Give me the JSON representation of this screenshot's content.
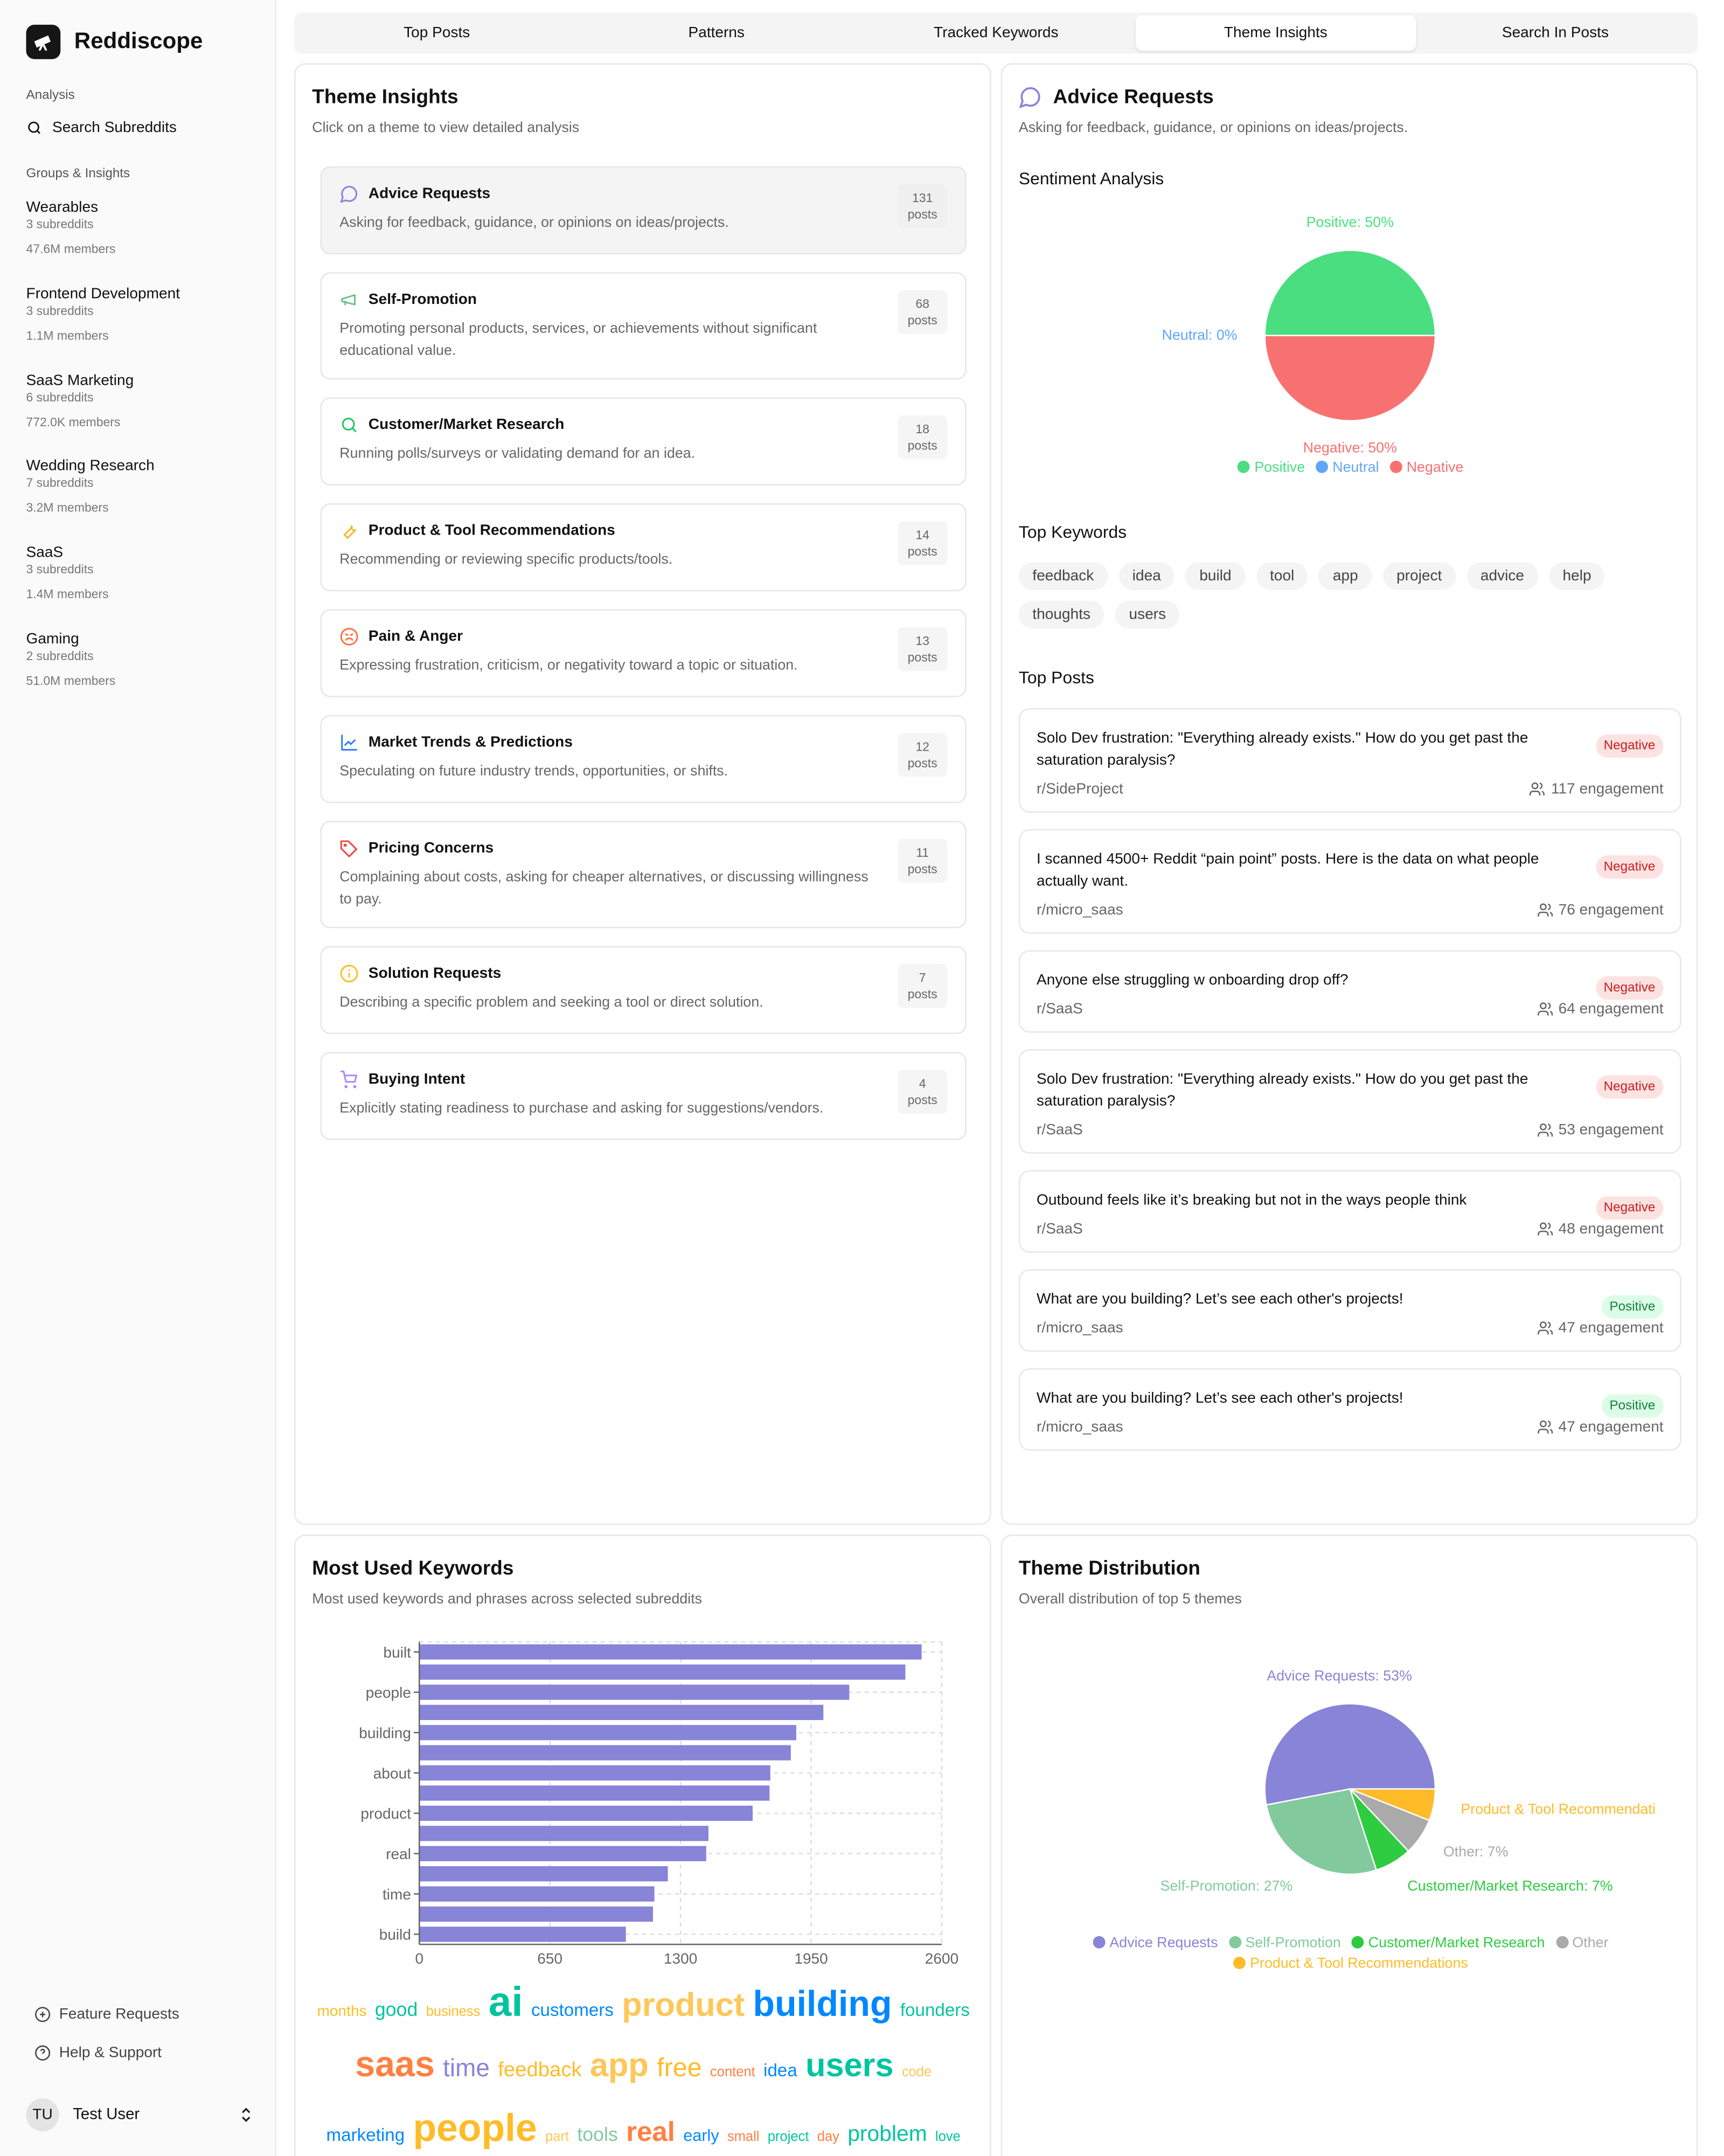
{
  "app": {
    "name": "Reddiscope",
    "logo_icon": "telescope-icon"
  },
  "sidebar": {
    "analysis_label": "Analysis",
    "search_label": "Search Subreddits",
    "groups_label": "Groups & Insights",
    "groups": [
      {
        "name": "Wearables",
        "subs": "3 subreddits",
        "members": "47.6M members"
      },
      {
        "name": "Frontend Development",
        "subs": "3 subreddits",
        "members": "1.1M members"
      },
      {
        "name": "SaaS Marketing",
        "subs": "6 subreddits",
        "members": "772.0K members"
      },
      {
        "name": "Wedding Research",
        "subs": "7 subreddits",
        "members": "3.2M members"
      },
      {
        "name": "SaaS",
        "subs": "3 subreddits",
        "members": "1.4M members"
      },
      {
        "name": "Gaming",
        "subs": "2 subreddits",
        "members": "51.0M members"
      }
    ],
    "feature_requests": "Feature Requests",
    "help": "Help & Support",
    "user": {
      "initials": "TU",
      "name": "Test User"
    }
  },
  "tabs": [
    {
      "label": "Top Posts"
    },
    {
      "label": "Patterns"
    },
    {
      "label": "Tracked Keywords"
    },
    {
      "label": "Theme Insights",
      "active": true
    },
    {
      "label": "Search In Posts"
    }
  ],
  "themes_panel": {
    "title": "Theme Insights",
    "subtitle": "Click on a theme to view detailed analysis",
    "themes": [
      {
        "name": "Advice Requests",
        "desc": "Asking for feedback, guidance, or opinions on ideas/projects.",
        "count": "131",
        "unit": "posts",
        "icon": "message-circle-icon",
        "color": "#8b7fd9",
        "selected": true
      },
      {
        "name": "Self-Promotion",
        "desc": "Promoting personal products, services, or achievements without significant educational value.",
        "count": "68",
        "unit": "posts",
        "icon": "megaphone-icon",
        "color": "#6fbf8b"
      },
      {
        "name": "Customer/Market Research",
        "desc": "Running polls/surveys or validating demand for an idea.",
        "count": "18",
        "unit": "posts",
        "icon": "search-icon",
        "color": "#22c55e"
      },
      {
        "name": "Product & Tool Recommendations",
        "desc": "Recommending or reviewing specific products/tools.",
        "count": "14",
        "unit": "posts",
        "icon": "wrench-icon",
        "color": "#f5b82e"
      },
      {
        "name": "Pain & Anger",
        "desc": "Expressing frustration, criticism, or negativity toward a topic or situation.",
        "count": "13",
        "unit": "posts",
        "icon": "angry-face-icon",
        "color": "#f97347"
      },
      {
        "name": "Market Trends & Predictions",
        "desc": "Speculating on future industry trends, opportunities, or shifts.",
        "count": "12",
        "unit": "posts",
        "icon": "line-chart-icon",
        "color": "#2f7cf6"
      },
      {
        "name": "Pricing Concerns",
        "desc": "Complaining about costs, asking for cheaper alternatives, or discussing willingness to pay.",
        "count": "11",
        "unit": "posts",
        "icon": "tag-icon",
        "color": "#ef4444"
      },
      {
        "name": "Solution Requests",
        "desc": "Describing a specific problem and seeking a tool or direct solution.",
        "count": "7",
        "unit": "posts",
        "icon": "info-circle-icon",
        "color": "#fbbf24"
      },
      {
        "name": "Buying Intent",
        "desc": "Explicitly stating readiness to purchase and asking for suggestions/vendors.",
        "count": "4",
        "unit": "posts",
        "icon": "shopping-cart-icon",
        "color": "#a78bfa"
      }
    ]
  },
  "detail": {
    "title": "Advice Requests",
    "desc": "Asking for feedback, guidance, or opinions on ideas/projects.",
    "sentiment_title": "Sentiment Analysis",
    "keywords_title": "Top Keywords",
    "keywords": [
      "feedback",
      "idea",
      "build",
      "tool",
      "app",
      "project",
      "advice",
      "help",
      "thoughts",
      "users"
    ],
    "posts_title": "Top Posts",
    "posts": [
      {
        "title": "Solo Dev frustration: \"Everything already exists.\" How do you get past the saturation paralysis?",
        "sub": "r/SideProject",
        "engagement": "117 engagement",
        "sentiment": "Negative"
      },
      {
        "title": "I scanned 4500+ Reddit “pain point” posts. Here is the data on what people actually want.",
        "sub": "r/micro_saas",
        "engagement": "76 engagement",
        "sentiment": "Negative"
      },
      {
        "title": "Anyone else struggling w onboarding drop off?",
        "sub": "r/SaaS",
        "engagement": "64 engagement",
        "sentiment": "Negative"
      },
      {
        "title": "Solo Dev frustration: \"Everything already exists.\" How do you get past the saturation paralysis?",
        "sub": "r/SaaS",
        "engagement": "53 engagement",
        "sentiment": "Negative"
      },
      {
        "title": "Outbound feels like it’s breaking but not in the ways people think",
        "sub": "r/SaaS",
        "engagement": "48 engagement",
        "sentiment": "Negative"
      },
      {
        "title": "What are you building? Let’s see each other's projects!",
        "sub": "r/micro_saas",
        "engagement": "47 engagement",
        "sentiment": "Positive"
      },
      {
        "title": "What are you building? Let’s see each other's projects!",
        "sub": "r/micro_saas",
        "engagement": "47 engagement",
        "sentiment": "Positive"
      }
    ],
    "badge_colors": {
      "Negative": {
        "bg": "#fde2e2",
        "fg": "#c81e1e"
      },
      "Positive": {
        "bg": "#dcfce7",
        "fg": "#15803d"
      }
    }
  },
  "keywords_panel": {
    "title": "Most Used Keywords",
    "subtitle": "Most used keywords and phrases across selected subreddits",
    "cloud": [
      [
        {
          "w": "months",
          "s": 11,
          "c": "#FBBF24"
        },
        {
          "w": "good",
          "s": 14,
          "c": "#00C49F"
        },
        {
          "w": "business",
          "s": 10,
          "c": "#FFBB28"
        },
        {
          "w": "ai",
          "s": 30,
          "c": "#00C49F"
        },
        {
          "w": "customers",
          "s": 13,
          "c": "#0088FE"
        },
        {
          "w": "product",
          "s": 24,
          "c": "#FFC658"
        },
        {
          "w": "building",
          "s": 26,
          "c": "#0088FE"
        },
        {
          "w": "founders",
          "s": 13,
          "c": "#00C49F"
        }
      ],
      [
        {
          "w": "saas",
          "s": 26,
          "c": "#FF8042"
        },
        {
          "w": "time",
          "s": 18,
          "c": "#8884D8"
        },
        {
          "w": "feedback",
          "s": 15,
          "c": "#FFBB28"
        },
        {
          "w": "app",
          "s": 24,
          "c": "#FFC658"
        },
        {
          "w": "free",
          "s": 19,
          "c": "#FFBB28"
        },
        {
          "w": "content",
          "s": 10,
          "c": "#FF8042"
        },
        {
          "w": "idea",
          "s": 13,
          "c": "#0088FE"
        },
        {
          "w": "users",
          "s": 24,
          "c": "#00C49F"
        },
        {
          "w": "code",
          "s": 10,
          "c": "#FFC658"
        }
      ],
      [
        {
          "w": "marketing",
          "s": 13,
          "c": "#0088FE"
        },
        {
          "w": "people",
          "s": 28,
          "c": "#FFBB28"
        },
        {
          "w": "part",
          "s": 10,
          "c": "#FFC658"
        },
        {
          "w": "tools",
          "s": 14,
          "c": "#82CA9D"
        },
        {
          "w": "real",
          "s": 20,
          "c": "#FF8042"
        },
        {
          "w": "early",
          "s": 12,
          "c": "#0088FE"
        },
        {
          "w": "small",
          "s": 10,
          "c": "#FF8042"
        },
        {
          "w": "project",
          "s": 10,
          "c": "#00C49F"
        },
        {
          "w": "day",
          "s": 10,
          "c": "#FF8042"
        },
        {
          "w": "problem",
          "s": 16,
          "c": "#00C49F"
        },
        {
          "w": "love",
          "s": 10,
          "c": "#00C49F"
        }
      ]
    ]
  },
  "distribution_panel": {
    "title": "Theme Distribution",
    "subtitle": "Overall distribution of top 5 themes"
  },
  "chart_data": [
    {
      "type": "pie",
      "series": "sentiment",
      "slices": [
        {
          "name": "Positive",
          "value": 50,
          "label": "Positive: 50%",
          "color": "#4ADE80"
        },
        {
          "name": "Neutral",
          "value": 0,
          "label": "Neutral: 0%",
          "color": "#60A5FA"
        },
        {
          "name": "Negative",
          "value": 50,
          "label": "Negative: 50%",
          "color": "#F87171"
        }
      ],
      "legend": "bottom"
    },
    {
      "type": "bar",
      "orientation": "horizontal",
      "categories": [
        "built",
        "",
        "people",
        "",
        "building",
        "",
        "about",
        "",
        "product",
        "",
        "real",
        "",
        "time",
        "",
        "build"
      ],
      "values": [
        2500,
        2419,
        2140,
        2011,
        1876,
        1849,
        1747,
        1743,
        1659,
        1439,
        1428,
        1237,
        1170,
        1163,
        1028
      ],
      "xlim": [
        0,
        2600
      ],
      "xticks": [
        "0",
        "650",
        "1300",
        "1950",
        "2600"
      ],
      "grid": true,
      "color": "#8884D8"
    },
    {
      "type": "pie",
      "series": "theme distribution",
      "slices": [
        {
          "name": "Advice Requests",
          "value": 53,
          "label": "Advice Requests: 53%",
          "color": "#8884D8"
        },
        {
          "name": "Self-Promotion",
          "value": 27,
          "label": "Self-Promotion: 27%",
          "color": "#82CA9D"
        },
        {
          "name": "Customer/Market Research",
          "value": 7,
          "label": "Customer/Market Research: 7%",
          "color": "#2ECC40"
        },
        {
          "name": "Other",
          "value": 7,
          "label": "Other: 7%",
          "color": "#AAAAAA"
        },
        {
          "name": "Product & Tool Recommendations",
          "value": 6,
          "label": "Product & Tool Recommendati",
          "color": "#FFBB28"
        }
      ],
      "legend_order": [
        "Advice Requests",
        "Self-Promotion",
        "Customer/Market Research",
        "Other",
        "Product & Tool Recommendations"
      ],
      "legend": "bottom"
    }
  ]
}
